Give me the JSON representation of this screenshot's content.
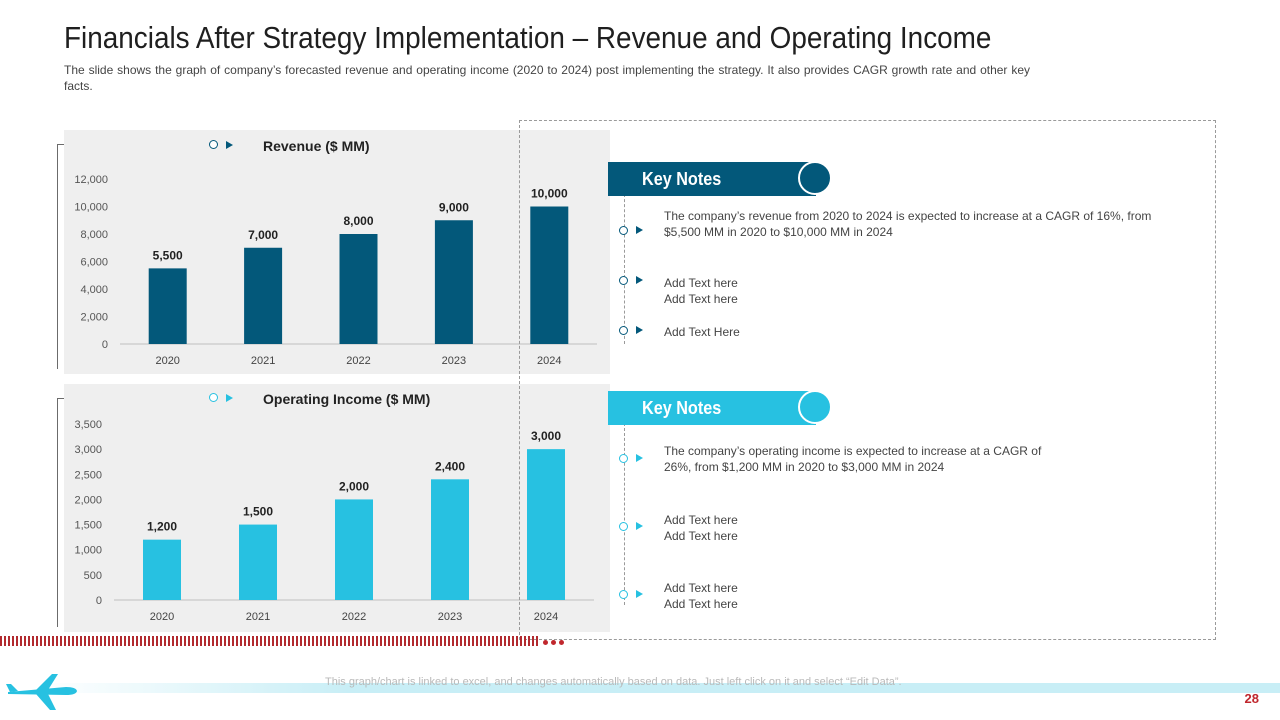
{
  "slide": {
    "title": "Financials After Strategy Implementation – Revenue and Operating Income",
    "subtitle": "The slide shows the graph of company’s forecasted revenue and operating income (2020 to 2024) post implementing the strategy. It also provides CAGR growth rate and other key facts.",
    "footer_note": "This graph/chart is linked to excel, and changes automatically based on data. Just left click on it and select “Edit Data”.",
    "page_number": "28"
  },
  "colors": {
    "revenue_bar": "#03587a",
    "income_bar": "#27c1e1",
    "tab_dark": "#03587a",
    "tab_light": "#27c1e1",
    "accent_red": "#c0272d"
  },
  "chart_data": [
    {
      "type": "bar",
      "title": "Revenue ($ MM)",
      "categories": [
        "2020",
        "2021",
        "2022",
        "2023",
        "2024"
      ],
      "values": [
        5500,
        7000,
        8000,
        9000,
        10000
      ],
      "value_labels": [
        "5,500",
        "7,000",
        "8,000",
        "9,000",
        "10,000"
      ],
      "y_ticks": [
        "0",
        "2,000",
        "4,000",
        "6,000",
        "8,000",
        "10,000",
        "12,000"
      ],
      "ylim": [
        0,
        12000
      ],
      "xlabel": "",
      "ylabel": "",
      "grid": false
    },
    {
      "type": "bar",
      "title": "Operating Income ($ MM)",
      "categories": [
        "2020",
        "2021",
        "2022",
        "2023",
        "2024"
      ],
      "values": [
        1200,
        1500,
        2000,
        2400,
        3000
      ],
      "value_labels": [
        "1,200",
        "1,500",
        "2,000",
        "2,400",
        "3,000"
      ],
      "y_ticks": [
        "0",
        "500",
        "1,000",
        "1,500",
        "2,000",
        "2,500",
        "3,000",
        "3,500"
      ],
      "ylim": [
        0,
        3500
      ],
      "xlabel": "",
      "ylabel": "",
      "grid": false
    }
  ],
  "key_notes": [
    {
      "label": "Key Notes",
      "items": [
        "The company’s revenue from 2020 to 2024 is expected to increase at a CAGR of 16%, from $5,500 MM in 2020 to $10,000 MM in 2024",
        "Add Text here\nAdd Text here",
        "Add Text Here"
      ]
    },
    {
      "label": "Key Notes",
      "items": [
        "The company’s operating income is expected to increase at a CAGR of 26%, from $1,200 MM in 2020 to $3,000 MM in 2024",
        "Add Text here\nAdd Text here",
        "Add Text here\nAdd Text here"
      ]
    }
  ]
}
